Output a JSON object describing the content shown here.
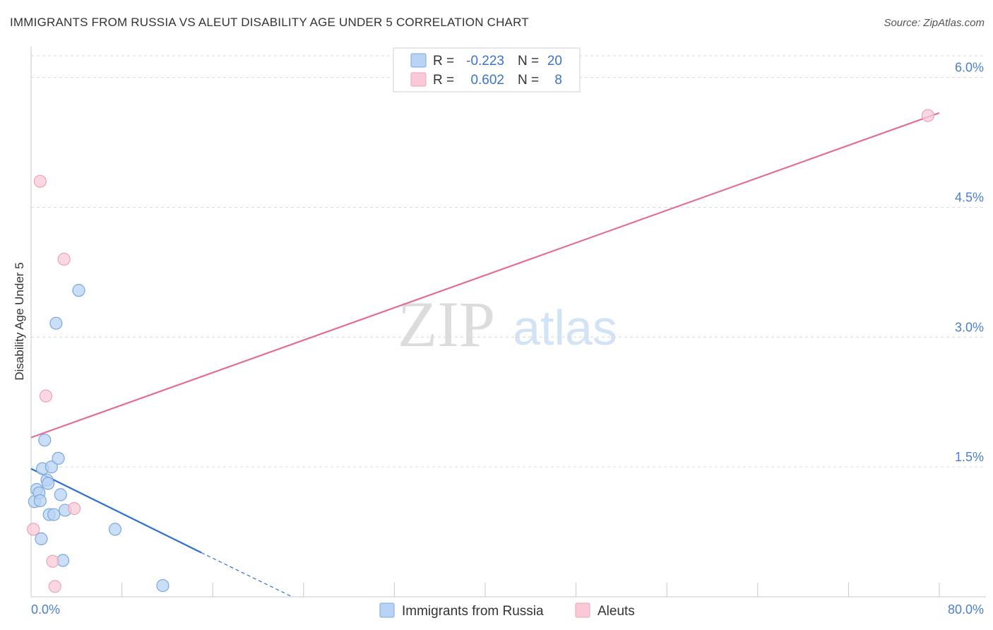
{
  "header": {
    "title": "IMMIGRANTS FROM RUSSIA VS ALEUT DISABILITY AGE UNDER 5 CORRELATION CHART",
    "source": "Source: ZipAtlas.com"
  },
  "watermark": {
    "zip": "ZIP",
    "atlas": "atlas"
  },
  "colors": {
    "blue_fill": "#b8d3f3",
    "blue_stroke": "#7aa7e0",
    "blue_line": "#2f6fd0",
    "pink_fill": "#f9c9d8",
    "pink_stroke": "#eba3b9",
    "pink_line": "#e26e96",
    "grid": "#d9d9d9",
    "axis_text": "#4a7fd0"
  },
  "legend_box": {
    "rows": [
      {
        "r_label": "R =",
        "r_value": "-0.223",
        "n_label": "N =",
        "n_value": "20",
        "series": "blue"
      },
      {
        "r_label": "R =",
        "r_value": "0.602",
        "n_label": "N =",
        "n_value": "8",
        "series": "pink"
      }
    ]
  },
  "chart_data": {
    "type": "scatter",
    "title": "IMMIGRANTS FROM RUSSIA VS ALEUT DISABILITY AGE UNDER 5 CORRELATION CHART",
    "xlabel": "",
    "ylabel": "Disability Age Under 5",
    "xlim": [
      0,
      80
    ],
    "ylim": [
      0,
      6.0
    ],
    "x_tick_labels": [
      "0.0%",
      "80.0%"
    ],
    "y_ticks": [
      1.5,
      3.0,
      4.5,
      6.0
    ],
    "y_tick_labels": [
      "1.5%",
      "3.0%",
      "4.5%",
      "6.0%"
    ],
    "grid": true,
    "legend_position": "bottom-center",
    "series": [
      {
        "name": "Immigrants from Russia",
        "color": "blue",
        "points": [
          [
            0.3,
            1.1
          ],
          [
            0.5,
            1.24
          ],
          [
            0.7,
            1.2
          ],
          [
            0.8,
            1.11
          ],
          [
            0.9,
            0.67
          ],
          [
            1.0,
            1.48
          ],
          [
            1.2,
            1.81
          ],
          [
            1.4,
            1.35
          ],
          [
            1.5,
            1.31
          ],
          [
            1.6,
            0.95
          ],
          [
            1.8,
            1.5
          ],
          [
            2.0,
            0.95
          ],
          [
            2.2,
            3.16
          ],
          [
            2.4,
            1.6
          ],
          [
            2.6,
            1.18
          ],
          [
            2.8,
            0.42
          ],
          [
            3.0,
            1.0
          ],
          [
            4.2,
            3.54
          ],
          [
            7.4,
            0.78
          ],
          [
            11.6,
            0.13
          ]
        ],
        "trendline": {
          "x": [
            0.0,
            15.0
          ],
          "y": [
            1.48,
            0.51
          ],
          "dashed_to": [
            23.0,
            0.0
          ]
        }
      },
      {
        "name": "Aleuts",
        "color": "pink",
        "points": [
          [
            0.2,
            0.78
          ],
          [
            0.8,
            4.8
          ],
          [
            1.3,
            2.32
          ],
          [
            1.9,
            0.41
          ],
          [
            2.1,
            0.12
          ],
          [
            2.9,
            3.9
          ],
          [
            3.8,
            1.02
          ],
          [
            79.0,
            5.56
          ]
        ],
        "trendline": {
          "x": [
            0.0,
            80.0
          ],
          "y": [
            1.84,
            5.59
          ]
        }
      }
    ]
  }
}
